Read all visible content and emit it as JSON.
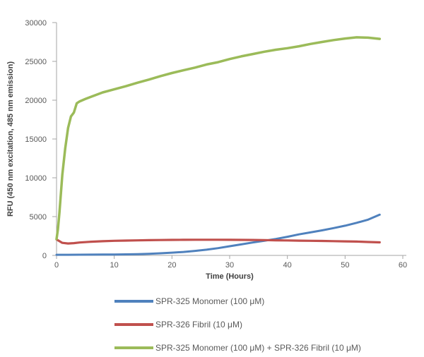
{
  "chart_data": {
    "type": "line",
    "xlabel": "Time (Hours)",
    "ylabel": "RFU (450 nm excitation, 485 nm emission)",
    "xlim": [
      0,
      60
    ],
    "ylim": [
      0,
      30000
    ],
    "x_ticks": [
      0,
      10,
      20,
      30,
      40,
      50,
      60
    ],
    "y_ticks": [
      0,
      5000,
      10000,
      15000,
      20000,
      25000,
      30000
    ],
    "grid": false,
    "legend_position": "bottom-left",
    "axis_color": "#A6A6A6",
    "tick_label_color": "#595959",
    "axis_title_color": "#404040",
    "series": [
      {
        "name": "SPR-325 Monomer (100 μM)",
        "color": "#4F81BD",
        "width": 3,
        "points": [
          [
            0,
            80
          ],
          [
            2,
            85
          ],
          [
            4,
            90
          ],
          [
            6,
            100
          ],
          [
            8,
            105
          ],
          [
            10,
            115
          ],
          [
            12,
            135
          ],
          [
            14,
            165
          ],
          [
            16,
            210
          ],
          [
            18,
            270
          ],
          [
            20,
            350
          ],
          [
            22,
            450
          ],
          [
            24,
            580
          ],
          [
            26,
            740
          ],
          [
            28,
            940
          ],
          [
            30,
            1180
          ],
          [
            32,
            1420
          ],
          [
            34,
            1660
          ],
          [
            36,
            1880
          ],
          [
            38,
            2120
          ],
          [
            40,
            2400
          ],
          [
            42,
            2710
          ],
          [
            44,
            2960
          ],
          [
            46,
            3230
          ],
          [
            48,
            3520
          ],
          [
            50,
            3830
          ],
          [
            52,
            4200
          ],
          [
            54,
            4610
          ],
          [
            56,
            5250
          ]
        ]
      },
      {
        "name": "SPR-326 Fibril (10 μM)",
        "color": "#C0504D",
        "width": 3.2,
        "points": [
          [
            0,
            2050
          ],
          [
            1,
            1620
          ],
          [
            2,
            1540
          ],
          [
            3,
            1580
          ],
          [
            4,
            1660
          ],
          [
            6,
            1760
          ],
          [
            8,
            1830
          ],
          [
            10,
            1880
          ],
          [
            12,
            1910
          ],
          [
            14,
            1940
          ],
          [
            16,
            1960
          ],
          [
            18,
            1980
          ],
          [
            20,
            2000
          ],
          [
            22,
            2010
          ],
          [
            24,
            2020
          ],
          [
            26,
            2020
          ],
          [
            28,
            2020
          ],
          [
            30,
            2010
          ],
          [
            32,
            2000
          ],
          [
            34,
            1990
          ],
          [
            36,
            1970
          ],
          [
            38,
            1950
          ],
          [
            40,
            1930
          ],
          [
            42,
            1900
          ],
          [
            44,
            1880
          ],
          [
            46,
            1860
          ],
          [
            48,
            1840
          ],
          [
            50,
            1810
          ],
          [
            52,
            1780
          ],
          [
            54,
            1730
          ],
          [
            56,
            1680
          ]
        ]
      },
      {
        "name": "SPR-325 Monomer (100 μM) + SPR-326 Fibril (10 μM)",
        "color": "#9BBB59",
        "width": 3.5,
        "points": [
          [
            0,
            2100
          ],
          [
            0.25,
            3400
          ],
          [
            0.5,
            5500
          ],
          [
            1,
            10400
          ],
          [
            1.5,
            13800
          ],
          [
            2,
            16400
          ],
          [
            2.5,
            17900
          ],
          [
            3,
            18400
          ],
          [
            3.5,
            19600
          ],
          [
            4,
            19850
          ],
          [
            5,
            20150
          ],
          [
            6,
            20450
          ],
          [
            8,
            21000
          ],
          [
            10,
            21400
          ],
          [
            12,
            21800
          ],
          [
            14,
            22250
          ],
          [
            16,
            22650
          ],
          [
            18,
            23100
          ],
          [
            20,
            23500
          ],
          [
            22,
            23850
          ],
          [
            24,
            24200
          ],
          [
            26,
            24600
          ],
          [
            28,
            24900
          ],
          [
            30,
            25300
          ],
          [
            32,
            25650
          ],
          [
            34,
            25950
          ],
          [
            36,
            26250
          ],
          [
            38,
            26500
          ],
          [
            40,
            26700
          ],
          [
            42,
            26950
          ],
          [
            44,
            27250
          ],
          [
            46,
            27500
          ],
          [
            48,
            27750
          ],
          [
            50,
            27950
          ],
          [
            52,
            28100
          ],
          [
            54,
            28050
          ],
          [
            56,
            27900
          ]
        ]
      }
    ]
  }
}
